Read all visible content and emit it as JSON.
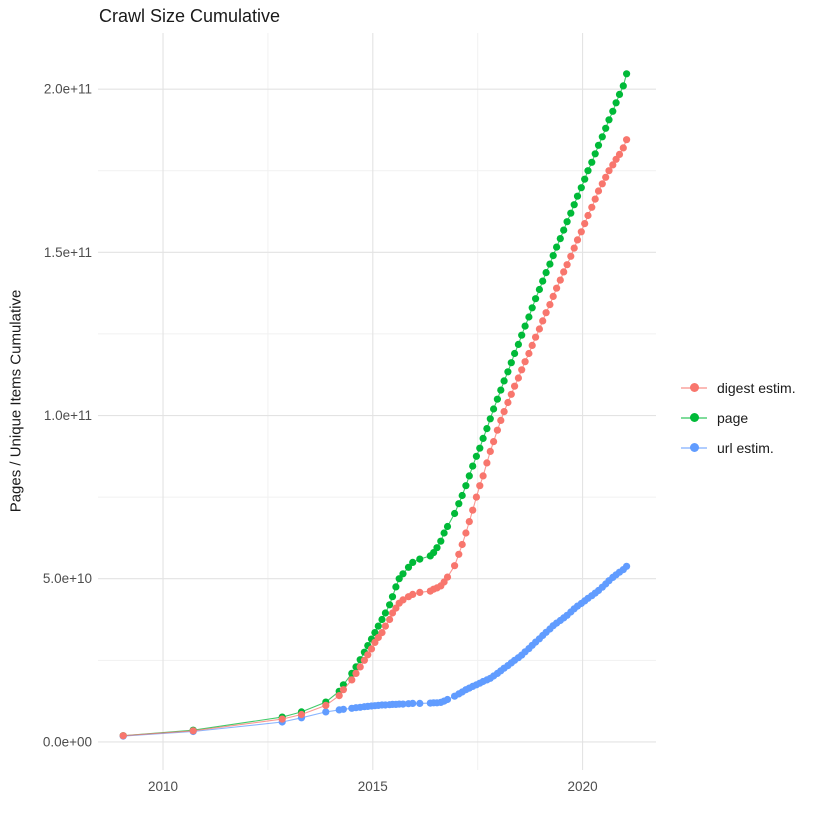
{
  "chart_data": {
    "type": "scatter",
    "title": "Crawl Size Cumulative",
    "xlabel": "",
    "ylabel": "Pages / Unique Items Cumulative",
    "xlim": [
      2008.45,
      2021.75
    ],
    "ylim": [
      -8600000000.0,
      217200000000.0
    ],
    "grid": true,
    "legend_position": "right",
    "x_ticks": [
      {
        "value": 2010,
        "label": "2010"
      },
      {
        "value": 2015,
        "label": "2015"
      },
      {
        "value": 2020,
        "label": "2020"
      }
    ],
    "x_minor": [
      2012.5,
      2017.5
    ],
    "y_ticks": [
      {
        "value": 0,
        "label": "0.0e+00"
      },
      {
        "value": 50000000000.0,
        "label": "5.0e+10"
      },
      {
        "value": 100000000000.0,
        "label": "1.0e+11"
      },
      {
        "value": 150000000000.0,
        "label": "1.5e+11"
      },
      {
        "value": 200000000000.0,
        "label": "2.0e+11"
      }
    ],
    "y_minor": [
      25000000000.0,
      75000000000.0,
      125000000000.0,
      175000000000.0
    ],
    "draw_order": [
      1,
      2,
      0
    ],
    "series": [
      {
        "name": "digest estim.",
        "color": "#F8766D",
        "points": [
          [
            2009.05,
            1900000000.0
          ],
          [
            2010.72,
            3400000000.0
          ],
          [
            2012.84,
            7000000000.0
          ],
          [
            2013.3,
            8400000000.0
          ],
          [
            2013.88,
            11200000000.0
          ],
          [
            2014.2,
            14200000000.0
          ],
          [
            2014.3,
            16000000000.0
          ],
          [
            2014.5,
            19000000000.0
          ],
          [
            2014.6,
            21000000000.0
          ],
          [
            2014.7,
            23000000000.0
          ],
          [
            2014.8,
            25000000000.0
          ],
          [
            2014.88,
            26700000000.0
          ],
          [
            2014.97,
            28500000000.0
          ],
          [
            2015.05,
            30500000000.0
          ],
          [
            2015.13,
            32000000000.0
          ],
          [
            2015.22,
            33500000000.0
          ],
          [
            2015.3,
            35500000000.0
          ],
          [
            2015.4,
            37500000000.0
          ],
          [
            2015.47,
            39500000000.0
          ],
          [
            2015.55,
            41000000000.0
          ],
          [
            2015.63,
            42500000000.0
          ],
          [
            2015.72,
            43500000000.0
          ],
          [
            2015.85,
            44500000000.0
          ],
          [
            2015.95,
            45200000000.0
          ],
          [
            2016.12,
            45800000000.0
          ],
          [
            2016.37,
            46200000000.0
          ],
          [
            2016.45,
            46800000000.0
          ],
          [
            2016.53,
            47200000000.0
          ],
          [
            2016.62,
            47800000000.0
          ],
          [
            2016.7,
            49000000000.0
          ],
          [
            2016.78,
            50500000000.0
          ],
          [
            2016.95,
            54000000000.0
          ],
          [
            2017.05,
            57500000000.0
          ],
          [
            2017.13,
            60500000000.0
          ],
          [
            2017.22,
            64000000000.0
          ],
          [
            2017.3,
            67500000000.0
          ],
          [
            2017.38,
            71000000000.0
          ],
          [
            2017.47,
            75000000000.0
          ],
          [
            2017.55,
            78500000000.0
          ],
          [
            2017.63,
            81500000000.0
          ],
          [
            2017.72,
            85500000000.0
          ],
          [
            2017.8,
            89000000000.0
          ],
          [
            2017.88,
            92000000000.0
          ],
          [
            2017.97,
            95500000000.0
          ],
          [
            2018.05,
            98500000000.0
          ],
          [
            2018.13,
            101200000000.0
          ],
          [
            2018.22,
            104000000000.0
          ],
          [
            2018.3,
            106500000000.0
          ],
          [
            2018.38,
            109000000000.0
          ],
          [
            2018.47,
            111500000000.0
          ],
          [
            2018.55,
            114000000000.0
          ],
          [
            2018.63,
            116500000000.0
          ],
          [
            2018.72,
            119000000000.0
          ],
          [
            2018.8,
            121500000000.0
          ],
          [
            2018.88,
            124000000000.0
          ],
          [
            2018.97,
            126500000000.0
          ],
          [
            2019.05,
            129000000000.0
          ],
          [
            2019.13,
            131500000000.0
          ],
          [
            2019.22,
            134000000000.0
          ],
          [
            2019.3,
            136500000000.0
          ],
          [
            2019.38,
            139000000000.0
          ],
          [
            2019.47,
            141500000000.0
          ],
          [
            2019.55,
            144000000000.0
          ],
          [
            2019.63,
            146200000000.0
          ],
          [
            2019.72,
            148800000000.0
          ],
          [
            2019.8,
            151300000000.0
          ],
          [
            2019.88,
            153800000000.0
          ],
          [
            2019.97,
            156300000000.0
          ],
          [
            2020.05,
            158800000000.0
          ],
          [
            2020.13,
            161300000000.0
          ],
          [
            2020.22,
            163800000000.0
          ],
          [
            2020.3,
            166300000000.0
          ],
          [
            2020.38,
            168800000000.0
          ],
          [
            2020.47,
            171000000000.0
          ],
          [
            2020.55,
            173000000000.0
          ],
          [
            2020.63,
            175000000000.0
          ],
          [
            2020.72,
            176800000000.0
          ],
          [
            2020.8,
            178500000000.0
          ],
          [
            2020.88,
            180000000000.0
          ],
          [
            2020.97,
            182000000000.0
          ],
          [
            2021.05,
            184500000000.0
          ]
        ]
      },
      {
        "name": "page",
        "color": "#00BA38",
        "points": [
          [
            2009.05,
            1900000000.0
          ],
          [
            2010.72,
            3600000000.0
          ],
          [
            2012.84,
            7600000000.0
          ],
          [
            2013.3,
            9200000000.0
          ],
          [
            2013.88,
            12200000000.0
          ],
          [
            2014.2,
            15500000000.0
          ],
          [
            2014.3,
            17500000000.0
          ],
          [
            2014.5,
            21000000000.0
          ],
          [
            2014.6,
            23000000000.0
          ],
          [
            2014.7,
            25200000000.0
          ],
          [
            2014.8,
            27500000000.0
          ],
          [
            2014.88,
            29500000000.0
          ],
          [
            2014.97,
            31500000000.0
          ],
          [
            2015.05,
            33500000000.0
          ],
          [
            2015.13,
            35500000000.0
          ],
          [
            2015.22,
            37500000000.0
          ],
          [
            2015.3,
            39500000000.0
          ],
          [
            2015.4,
            42000000000.0
          ],
          [
            2015.47,
            44500000000.0
          ],
          [
            2015.55,
            47500000000.0
          ],
          [
            2015.63,
            50000000000.0
          ],
          [
            2015.72,
            51500000000.0
          ],
          [
            2015.85,
            53500000000.0
          ],
          [
            2015.95,
            55000000000.0
          ],
          [
            2016.12,
            56000000000.0
          ],
          [
            2016.37,
            57000000000.0
          ],
          [
            2016.45,
            58000000000.0
          ],
          [
            2016.53,
            59500000000.0
          ],
          [
            2016.62,
            61500000000.0
          ],
          [
            2016.7,
            64000000000.0
          ],
          [
            2016.78,
            66000000000.0
          ],
          [
            2016.95,
            70000000000.0
          ],
          [
            2017.05,
            73000000000.0
          ],
          [
            2017.13,
            75500000000.0
          ],
          [
            2017.22,
            78500000000.0
          ],
          [
            2017.3,
            81500000000.0
          ],
          [
            2017.38,
            84500000000.0
          ],
          [
            2017.47,
            87500000000.0
          ],
          [
            2017.55,
            90000000000.0
          ],
          [
            2017.63,
            93000000000.0
          ],
          [
            2017.72,
            96000000000.0
          ],
          [
            2017.8,
            99000000000.0
          ],
          [
            2017.88,
            102000000000.0
          ],
          [
            2017.97,
            105000000000.0
          ],
          [
            2018.05,
            107800000000.0
          ],
          [
            2018.13,
            110600000000.0
          ],
          [
            2018.22,
            113400000000.0
          ],
          [
            2018.3,
            116200000000.0
          ],
          [
            2018.38,
            119000000000.0
          ],
          [
            2018.47,
            121800000000.0
          ],
          [
            2018.55,
            124600000000.0
          ],
          [
            2018.63,
            127400000000.0
          ],
          [
            2018.72,
            130200000000.0
          ],
          [
            2018.8,
            133000000000.0
          ],
          [
            2018.88,
            135800000000.0
          ],
          [
            2018.97,
            138600000000.0
          ],
          [
            2019.05,
            141200000000.0
          ],
          [
            2019.13,
            143800000000.0
          ],
          [
            2019.22,
            146400000000.0
          ],
          [
            2019.3,
            149000000000.0
          ],
          [
            2019.38,
            151600000000.0
          ],
          [
            2019.47,
            154200000000.0
          ],
          [
            2019.55,
            156800000000.0
          ],
          [
            2019.63,
            159400000000.0
          ],
          [
            2019.72,
            162000000000.0
          ],
          [
            2019.8,
            164600000000.0
          ],
          [
            2019.88,
            167200000000.0
          ],
          [
            2019.97,
            169800000000.0
          ],
          [
            2020.05,
            172400000000.0
          ],
          [
            2020.13,
            175000000000.0
          ],
          [
            2020.22,
            177600000000.0
          ],
          [
            2020.3,
            180200000000.0
          ],
          [
            2020.38,
            182800000000.0
          ],
          [
            2020.47,
            185400000000.0
          ],
          [
            2020.55,
            188000000000.0
          ],
          [
            2020.63,
            190600000000.0
          ],
          [
            2020.72,
            193200000000.0
          ],
          [
            2020.8,
            195800000000.0
          ],
          [
            2020.88,
            198400000000.0
          ],
          [
            2020.97,
            201000000000.0
          ],
          [
            2021.05,
            204700000000.0
          ]
        ]
      },
      {
        "name": "url estim.",
        "color": "#619CFF",
        "points": [
          [
            2009.05,
            1800000000.0
          ],
          [
            2010.72,
            3200000000.0
          ],
          [
            2012.84,
            6100000000.0
          ],
          [
            2013.3,
            7400000000.0
          ],
          [
            2013.88,
            9200000000.0
          ],
          [
            2014.2,
            9800000000.0
          ],
          [
            2014.3,
            10000000000.0
          ],
          [
            2014.5,
            10300000000.0
          ],
          [
            2014.6,
            10500000000.0
          ],
          [
            2014.7,
            10600000000.0
          ],
          [
            2014.8,
            10800000000.0
          ],
          [
            2014.88,
            10900000000.0
          ],
          [
            2014.97,
            11000000000.0
          ],
          [
            2015.05,
            11100000000.0
          ],
          [
            2015.13,
            11200000000.0
          ],
          [
            2015.22,
            11300000000.0
          ],
          [
            2015.3,
            11300000000.0
          ],
          [
            2015.4,
            11400000000.0
          ],
          [
            2015.47,
            11500000000.0
          ],
          [
            2015.55,
            11500000000.0
          ],
          [
            2015.63,
            11600000000.0
          ],
          [
            2015.72,
            11600000000.0
          ],
          [
            2015.85,
            11700000000.0
          ],
          [
            2015.95,
            11800000000.0
          ],
          [
            2016.12,
            11800000000.0
          ],
          [
            2016.37,
            11900000000.0
          ],
          [
            2016.45,
            12000000000.0
          ],
          [
            2016.53,
            12000000000.0
          ],
          [
            2016.62,
            12100000000.0
          ],
          [
            2016.7,
            12500000000.0
          ],
          [
            2016.78,
            13000000000.0
          ],
          [
            2016.95,
            14000000000.0
          ],
          [
            2017.05,
            14700000000.0
          ],
          [
            2017.13,
            15300000000.0
          ],
          [
            2017.22,
            16000000000.0
          ],
          [
            2017.3,
            16500000000.0
          ],
          [
            2017.38,
            17000000000.0
          ],
          [
            2017.47,
            17500000000.0
          ],
          [
            2017.55,
            18000000000.0
          ],
          [
            2017.63,
            18500000000.0
          ],
          [
            2017.72,
            19000000000.0
          ],
          [
            2017.8,
            19500000000.0
          ],
          [
            2017.88,
            20200000000.0
          ],
          [
            2017.97,
            21000000000.0
          ],
          [
            2018.05,
            21800000000.0
          ],
          [
            2018.13,
            22600000000.0
          ],
          [
            2018.22,
            23400000000.0
          ],
          [
            2018.3,
            24200000000.0
          ],
          [
            2018.38,
            25000000000.0
          ],
          [
            2018.47,
            25800000000.0
          ],
          [
            2018.55,
            26600000000.0
          ],
          [
            2018.63,
            27600000000.0
          ],
          [
            2018.72,
            28600000000.0
          ],
          [
            2018.8,
            29600000000.0
          ],
          [
            2018.88,
            30600000000.0
          ],
          [
            2018.97,
            31600000000.0
          ],
          [
            2019.05,
            32600000000.0
          ],
          [
            2019.13,
            33600000000.0
          ],
          [
            2019.22,
            34600000000.0
          ],
          [
            2019.3,
            35600000000.0
          ],
          [
            2019.38,
            36400000000.0
          ],
          [
            2019.47,
            37200000000.0
          ],
          [
            2019.55,
            38000000000.0
          ],
          [
            2019.63,
            38800000000.0
          ],
          [
            2019.72,
            39800000000.0
          ],
          [
            2019.8,
            40800000000.0
          ],
          [
            2019.88,
            41600000000.0
          ],
          [
            2019.97,
            42400000000.0
          ],
          [
            2020.05,
            43200000000.0
          ],
          [
            2020.13,
            44000000000.0
          ],
          [
            2020.22,
            44800000000.0
          ],
          [
            2020.3,
            45600000000.0
          ],
          [
            2020.38,
            46400000000.0
          ],
          [
            2020.47,
            47400000000.0
          ],
          [
            2020.55,
            48400000000.0
          ],
          [
            2020.63,
            49400000000.0
          ],
          [
            2020.72,
            50400000000.0
          ],
          [
            2020.8,
            51200000000.0
          ],
          [
            2020.88,
            52000000000.0
          ],
          [
            2020.97,
            52800000000.0
          ],
          [
            2021.05,
            53800000000.0
          ]
        ]
      }
    ]
  }
}
